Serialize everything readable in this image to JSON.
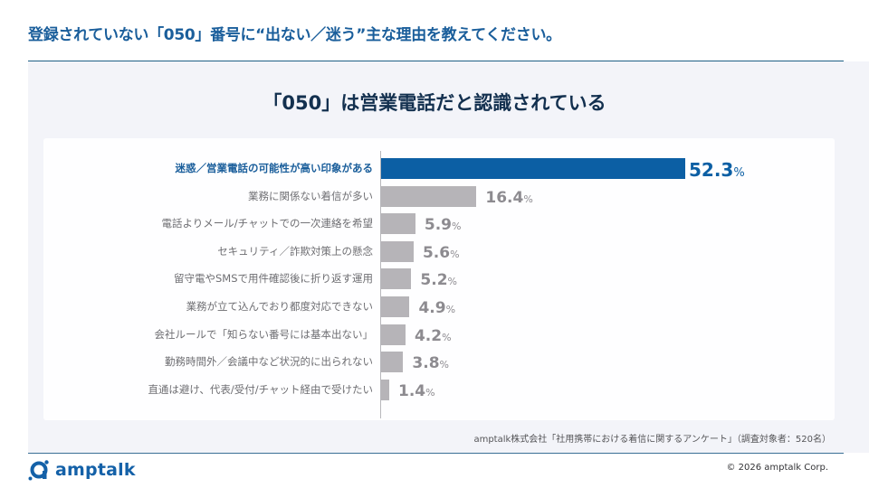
{
  "header": {
    "question": "登録されていない「050」番号に“出ない／迷う”主な理由を教えてください。"
  },
  "chart_data": {
    "type": "bar",
    "orientation": "horizontal",
    "title": "「050」は営業電話だと認識されている",
    "xlabel": "",
    "ylabel": "",
    "unit": "%",
    "grid": false,
    "legend": null,
    "categories": [
      "迷惑／営業電話の可能性が高い印象がある",
      "業務に関係ない着信が多い",
      "電話よりメール/チャットでの一次連絡を希望",
      "セキュリティ／詐欺対策上の懸念",
      "留守電やSMSで用件確認後に折り返す運用",
      "業務が立て込んでおり都度対応できない",
      "会社ルールで「知らない番号には基本出ない」",
      "勤務時間外／会議中など状況的に出られない",
      "直通は避け、代表/受付/チャット経由で受けたい"
    ],
    "values": [
      52.3,
      16.4,
      5.9,
      5.6,
      5.2,
      4.9,
      4.2,
      3.8,
      1.4
    ],
    "value_labels": [
      "52.3",
      "16.4",
      "5.9",
      "5.6",
      "5.2",
      "4.9",
      "4.2",
      "3.8",
      "1.4"
    ],
    "highlight_index": 0,
    "colors": {
      "highlight": "#0c5fa4",
      "default": "#b6b4b8"
    }
  },
  "source": "amptalk株式会社「社用携帯における着信に関するアンケート」（調査対象者：520名）",
  "footer": {
    "logo_text": "amptalk",
    "copyright": "© 2026 amptalk Corp."
  }
}
